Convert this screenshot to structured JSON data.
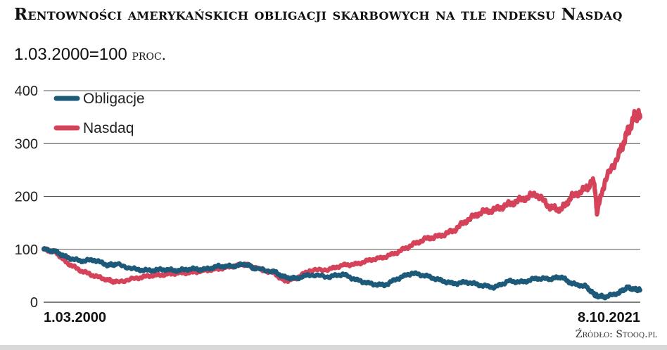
{
  "title": "Rentowności amerykańskich obligacji skarbowych na tle indeksu Nasdaq",
  "subtitle_value": "1.03.2000=100",
  "subtitle_unit": "proc.",
  "source": "Źródło: Stooq.pl",
  "colors": {
    "bonds": "#1d5a7a",
    "nasdaq": "#d5435b",
    "grid": "#555555"
  },
  "chart_data": {
    "type": "line",
    "title": "Rentowności amerykańskich obligacji skarbowych na tle indeksu Nasdaq",
    "subtitle": "1.03.2000=100 proc.",
    "xlabel": "",
    "ylabel": "",
    "x_range": [
      "2000-03-01",
      "2021-10-08"
    ],
    "x_tick_labels": [
      "1.03.2000",
      "8.10.2021"
    ],
    "ylim": [
      0,
      400
    ],
    "y_ticks": [
      0,
      100,
      200,
      300,
      400
    ],
    "grid": true,
    "legend_position": "top-left",
    "x": [
      2000.17,
      2000.6,
      2001.0,
      2001.5,
      2002.0,
      2002.5,
      2002.8,
      2003.5,
      2004.0,
      2004.5,
      2005.0,
      2005.5,
      2006.0,
      2006.5,
      2007.0,
      2007.5,
      2007.8,
      2008.5,
      2008.9,
      2009.3,
      2009.8,
      2010.5,
      2011.0,
      2011.5,
      2012.0,
      2012.5,
      2013.0,
      2013.5,
      2014.0,
      2014.5,
      2015.0,
      2015.5,
      2016.0,
      2016.5,
      2017.0,
      2017.5,
      2018.0,
      2018.5,
      2018.9,
      2019.3,
      2019.8,
      2020.1,
      2020.2,
      2020.5,
      2021.0,
      2021.3,
      2021.6,
      2021.77
    ],
    "series": [
      {
        "name": "Obligacje",
        "color": "#1d5a7a",
        "values": [
          100,
          96,
          85,
          78,
          80,
          70,
          72,
          62,
          60,
          62,
          60,
          63,
          62,
          68,
          68,
          72,
          64,
          58,
          47,
          45,
          52,
          48,
          53,
          42,
          35,
          32,
          45,
          55,
          50,
          42,
          35,
          38,
          32,
          28,
          40,
          38,
          45,
          44,
          48,
          35,
          30,
          15,
          12,
          10,
          18,
          28,
          24,
          23
        ]
      },
      {
        "name": "Nasdaq",
        "color": "#d5435b",
        "values": [
          100,
          95,
          75,
          60,
          50,
          42,
          38,
          45,
          50,
          52,
          55,
          56,
          60,
          63,
          68,
          72,
          65,
          55,
          40,
          45,
          60,
          62,
          70,
          72,
          80,
          85,
          95,
          108,
          120,
          125,
          135,
          155,
          170,
          175,
          185,
          195,
          205,
          180,
          175,
          200,
          215,
          230,
          170,
          230,
          280,
          320,
          355,
          350
        ]
      }
    ]
  },
  "legend": {
    "items": [
      {
        "label": "Obligacje"
      },
      {
        "label": "Nasdaq"
      }
    ]
  }
}
